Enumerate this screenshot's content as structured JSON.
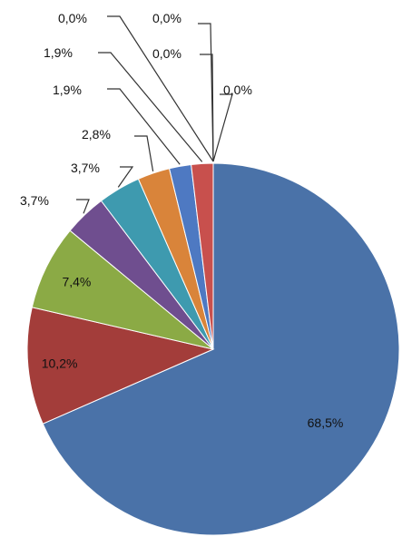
{
  "chart_data": {
    "type": "pie",
    "title": "",
    "start_angle_deg": 0,
    "direction": "clockwise",
    "slices": [
      {
        "label": "68,5%",
        "value": 68.5,
        "color": "#4A72A8"
      },
      {
        "label": "10,2%",
        "value": 10.2,
        "color": "#A33D3A"
      },
      {
        "label": "7,4%",
        "value": 7.4,
        "color": "#8BAA45"
      },
      {
        "label": "3,7%",
        "value": 3.7,
        "color": "#6F4E8F"
      },
      {
        "label": "3,7%",
        "value": 3.7,
        "color": "#3E9AAF"
      },
      {
        "label": "2,8%",
        "value": 2.8,
        "color": "#D9843A"
      },
      {
        "label": "1,9%",
        "value": 1.9,
        "color": "#4E79C2"
      },
      {
        "label": "1,9%",
        "value": 1.9,
        "color": "#C8504D"
      },
      {
        "label": "0,0%",
        "value": 0.0,
        "color": "#9BBB59"
      },
      {
        "label": "0,0%",
        "value": 0.0,
        "color": "#8064A2"
      },
      {
        "label": "0,0%",
        "value": 0.0,
        "color": "#4BACC6"
      },
      {
        "label": "0,0%",
        "value": 0.0,
        "color": "#F79646"
      }
    ]
  }
}
